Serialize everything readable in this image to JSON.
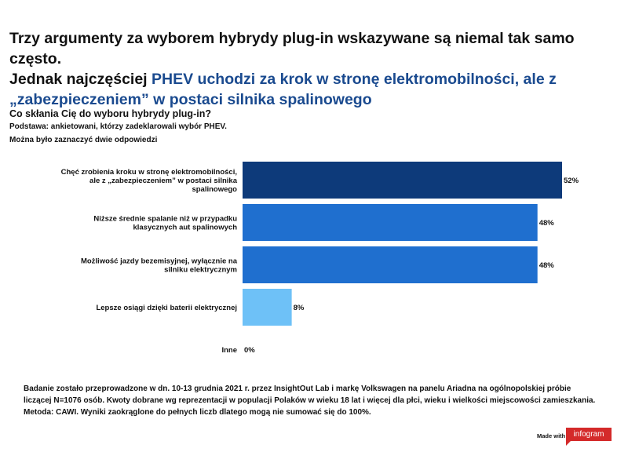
{
  "title": {
    "line1": "Trzy argumenty za wyborem hybrydy plug-in wskazywane są niemal tak samo często.",
    "line2_prefix": "Jednak najczęściej ",
    "line2_accent": "PHEV uchodzi za krok w stronę elektromobilności, ale z „zabezpieczeniem” w postaci silnika spalinowego"
  },
  "question": "Co skłania Cię do wyboru hybrydy plug-in?",
  "basis": "Podstawa: ankietowani, którzy zadeklarowali wybór PHEV.",
  "note": "Można było zaznaczyć dwie odpowiedzi",
  "footer": "Badanie zostało przeprowadzone w dn. 10-13 grudnia 2021 r. przez InsightOut Lab i markę Volkswagen na panelu Ariadna na ogólnopolskiej próbie liczącej N=1076 osób. Kwoty dobrane wg reprezentacji w populacji Polaków w wieku 18 lat i więcej dla płci, wieku i wielkości miejscowości zamieszkania. Metoda: CAWI. Wyniki zaokrąglone do pełnych liczb dlatego mogą nie sumować się do 100%.",
  "made_with": "Made with",
  "logo_text": "infogram",
  "colors": {
    "accent": "#1a4a8f",
    "logo": "#d42a2a"
  },
  "chart_data": {
    "type": "bar",
    "orientation": "horizontal",
    "categories": [
      [
        "Chęć zrobienia kroku w stronę elektromobilności,",
        "ale z „zabezpieczeniem” w postaci silnika",
        "spalinowego"
      ],
      [
        "Niższe średnie spalanie niż w przypadku",
        "klasycznych aut spalinowych"
      ],
      [
        "Możliwość jazdy bezemisyjnej, wyłącznie na",
        "silniku elektrycznym"
      ],
      [
        "Lepsze osiągi dzięki baterii elektrycznej"
      ],
      [
        "Inne"
      ]
    ],
    "values": [
      52,
      48,
      48,
      8,
      0
    ],
    "value_labels": [
      "52%",
      "48%",
      "48%",
      "8%",
      "0%"
    ],
    "bar_colors": [
      "#0d3a7a",
      "#1f6fcf",
      "#1f6fcf",
      "#6ec1f7",
      "#6ec1f7"
    ],
    "xlim": [
      0,
      52
    ],
    "grid": false
  }
}
